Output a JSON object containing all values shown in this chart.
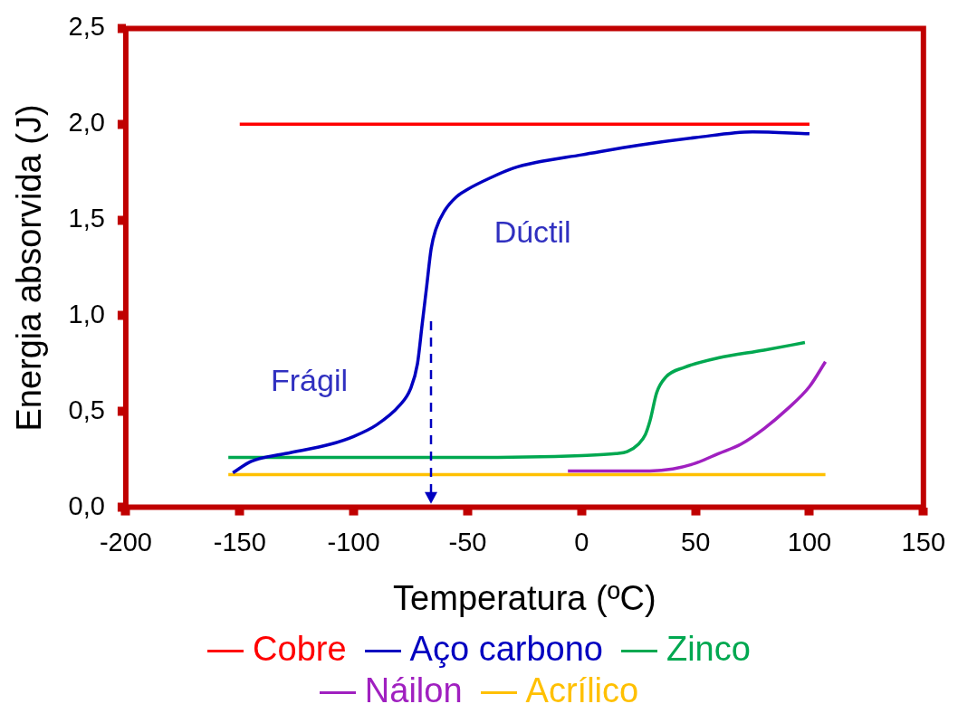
{
  "chart_data": {
    "type": "line",
    "xlabel": "Temperatura (ºC)",
    "ylabel": "Energia absorvida (J)",
    "xlim": [
      -200,
      150
    ],
    "xticks": [
      -200,
      -150,
      -100,
      -50,
      0,
      50,
      100,
      150
    ],
    "ylim": [
      0,
      2.5
    ],
    "yticks": [
      {
        "value": 0,
        "label": "0,0"
      },
      {
        "value": 0.5,
        "label": "0,5"
      },
      {
        "value": 1,
        "label": "1,0"
      },
      {
        "value": 1.5,
        "label": "1,5"
      },
      {
        "value": 2,
        "label": "2,0"
      },
      {
        "value": 2.5,
        "label": "2,5"
      }
    ],
    "grid": false,
    "legend": "bottom",
    "marker": "none",
    "line_style": "solid",
    "series": [
      {
        "name": "Cobre",
        "color": "#ff0000",
        "x": [
          -150,
          100
        ],
        "values": [
          2.0,
          2.0
        ]
      },
      {
        "name": "Aço carbono",
        "color": "#0000c0",
        "x": [
          -153,
          -145,
          -130,
          -110,
          -100,
          -90,
          -80,
          -75,
          -72,
          -70,
          -68,
          -66,
          -64,
          -60,
          -55,
          -50,
          -40,
          -30,
          -20,
          0,
          25,
          50,
          75,
          100
        ],
        "values": [
          0.18,
          0.24,
          0.28,
          0.33,
          0.37,
          0.43,
          0.53,
          0.62,
          0.75,
          0.95,
          1.15,
          1.35,
          1.45,
          1.55,
          1.62,
          1.66,
          1.72,
          1.77,
          1.8,
          1.84,
          1.89,
          1.93,
          1.96,
          1.95
        ]
      },
      {
        "name": "Zinco",
        "color": "#00a850",
        "x": [
          -155,
          -50,
          0,
          15,
          20,
          25,
          28,
          30,
          33,
          37,
          45,
          60,
          80,
          98
        ],
        "values": [
          0.26,
          0.26,
          0.27,
          0.28,
          0.29,
          0.33,
          0.38,
          0.45,
          0.6,
          0.68,
          0.73,
          0.78,
          0.82,
          0.86
        ]
      },
      {
        "name": "Náilon",
        "color": "#a020c0",
        "x": [
          -6,
          30,
          40,
          50,
          60,
          70,
          80,
          90,
          100,
          107
        ],
        "values": [
          0.19,
          0.19,
          0.2,
          0.23,
          0.28,
          0.33,
          0.41,
          0.51,
          0.63,
          0.76
        ]
      },
      {
        "name": "Acrílico",
        "color": "#ffc000",
        "x": [
          -155,
          107
        ],
        "values": [
          0.17,
          0.17
        ]
      }
    ],
    "ref_lines": [
      {
        "axis": "x",
        "value": -66,
        "color": "#0000c0",
        "line_style": "dashed"
      }
    ],
    "annotations": [
      "Frágil",
      "Dúctil"
    ]
  }
}
